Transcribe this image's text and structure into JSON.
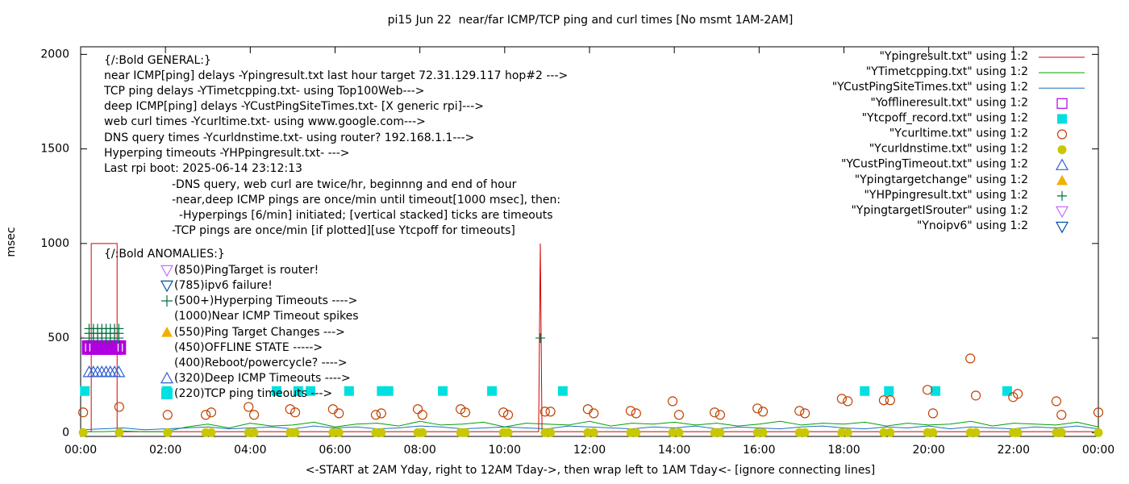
{
  "chart_data": {
    "type": "line",
    "title": "pi15 Jun 22  near/far ICMP/TCP ping and curl times [No msmt 1AM-2AM]",
    "xlabel": "<-START at 2AM Yday, right to 12AM Tday->, then wrap left to 1AM Tday<- [ignore connecting lines]",
    "ylabel": "msec",
    "xlim": [
      0,
      24
    ],
    "ylim": [
      -20,
      2040
    ],
    "xticks": [
      {
        "value": 0,
        "label": "00:00"
      },
      {
        "value": 2,
        "label": "02:00"
      },
      {
        "value": 4,
        "label": "04:00"
      },
      {
        "value": 6,
        "label": "06:00"
      },
      {
        "value": 8,
        "label": "08:00"
      },
      {
        "value": 10,
        "label": "10:00"
      },
      {
        "value": 12,
        "label": "12:00"
      },
      {
        "value": 14,
        "label": "14:00"
      },
      {
        "value": 16,
        "label": "16:00"
      },
      {
        "value": 18,
        "label": "18:00"
      },
      {
        "value": 20,
        "label": "20:00"
      },
      {
        "value": 22,
        "label": "22:00"
      },
      {
        "value": 24,
        "label": "00:00"
      }
    ],
    "yticks": [
      0,
      500,
      1000,
      1500,
      2000
    ],
    "legend": "top-right",
    "annotations": [
      "{/:Bold GENERAL:}",
      "near ICMP[ping] delays -Ypingresult.txt last hour target 72.31.129.117 hop#2 --->",
      "TCP ping delays -YTimetcpping.txt- using Top100Web--->",
      "deep ICMP[ping] delays -YCustPingSiteTimes.txt- [X generic rpi]--->",
      "web curl times -Ycurltime.txt- using www.google.com--->",
      "DNS query times -Ycurldnstime.txt- using router? 192.168.1.1--->",
      "Hyperping timeouts -YHPpingresult.txt- --->",
      "Last rpi boot: 2025-06-14 23:12:13",
      "-DNS query, web curl are twice/hr, beginnng and end of hour",
      "-near,deep ICMP pings are once/min until timeout[1000 msec], then:",
      "  -Hyperpings [6/min] initiated; [vertical stacked] ticks are timeouts",
      "-TCP pings are once/min [if plotted][use Ytcpoff for timeouts]",
      "{/:Bold ANOMALIES:}",
      "(850)PingTarget is router!",
      "(785)ipv6 failure!",
      "(500+)Hyperping Timeouts ---->",
      "(1000)Near ICMP Timeout spikes",
      "(550)Ping Target Changes --->",
      "(450)OFFLINE STATE ----->",
      "(400)Reboot/powercycle? ---->",
      "(320)Deep ICMP Timeouts ---->",
      "(220)TCP ping timeouts --->"
    ],
    "series": [
      {
        "name": "\"Ypingresult.txt\" using 1:2",
        "color": "#d40000",
        "marker": "line",
        "x": [
          0,
          0.25,
          0.25,
          0.86,
          0.86,
          10.8,
          10.84,
          10.88,
          24
        ],
        "values": [
          5,
          5,
          1000,
          1000,
          5,
          5,
          1000,
          5,
          5
        ]
      },
      {
        "name": "\"YTimetcpping.txt\" using 1:2",
        "color": "#00a000",
        "marker": "line",
        "x": [
          0,
          0.5,
          1,
          1.5,
          2,
          2.5,
          3,
          3.5,
          4,
          4.5,
          5,
          5.5,
          6,
          6.5,
          7,
          7.5,
          8,
          8.5,
          9,
          9.5,
          10,
          10.5,
          11,
          11.5,
          12,
          12.5,
          13,
          13.5,
          14,
          14.5,
          15,
          15.5,
          16,
          16.5,
          17,
          17.5,
          18,
          18.5,
          19,
          19.5,
          20,
          20.5,
          21,
          21.5,
          22,
          22.5,
          23,
          23.5,
          24
        ],
        "values": [
          5,
          5,
          8,
          5,
          5,
          30,
          45,
          25,
          50,
          35,
          40,
          55,
          30,
          45,
          50,
          35,
          60,
          40,
          45,
          55,
          30,
          50,
          45,
          40,
          60,
          35,
          50,
          45,
          55,
          40,
          50,
          35,
          45,
          60,
          40,
          50,
          45,
          55,
          35,
          50,
          40,
          45,
          60,
          35,
          50,
          45,
          40,
          55,
          30
        ]
      },
      {
        "name": "\"YCustPingSiteTimes.txt\" using 1:2",
        "color": "#1f6fc0",
        "marker": "line",
        "x": [
          0,
          0.5,
          1,
          1.5,
          2,
          2.5,
          3,
          3.5,
          4,
          4.5,
          5,
          5.5,
          6,
          6.5,
          7,
          7.5,
          8,
          8.5,
          9,
          9.5,
          10,
          10.5,
          11,
          11.5,
          12,
          12.5,
          13,
          13.5,
          14,
          14.5,
          15,
          15.5,
          16,
          16.5,
          17,
          17.5,
          18,
          18.5,
          19,
          19.5,
          20,
          20.5,
          21,
          21.5,
          22,
          22.5,
          23,
          23.5,
          24
        ],
        "values": [
          15,
          20,
          25,
          15,
          20,
          25,
          30,
          20,
          25,
          30,
          20,
          35,
          25,
          30,
          20,
          25,
          35,
          30,
          20,
          25,
          30,
          25,
          20,
          35,
          30,
          25,
          20,
          30,
          25,
          35,
          20,
          30,
          25,
          20,
          30,
          35,
          25,
          20,
          30,
          25,
          35,
          20,
          30,
          25,
          20,
          30,
          25,
          35,
          20
        ]
      },
      {
        "name": "\"Yofflineresult.txt\" using 1:2",
        "color": "#b000e0",
        "marker": "square-open",
        "x": [
          0.2,
          0.3,
          0.4,
          0.5,
          0.6,
          0.7,
          0.8,
          0.9
        ],
        "values": [
          450,
          450,
          450,
          450,
          450,
          450,
          450,
          450
        ]
      },
      {
        "name": "\"Ytcpoff_record.txt\" using 1:2",
        "color": "#00e0e0",
        "marker": "square",
        "x": [
          0.1,
          2.03,
          4.62,
          5.13,
          5.42,
          6.33,
          7.1,
          7.26,
          8.54,
          9.7,
          11.37,
          18.49,
          19.06,
          20.16,
          21.85
        ],
        "values": [
          220,
          220,
          220,
          220,
          220,
          220,
          220,
          220,
          220,
          220,
          220,
          220,
          220,
          220,
          220
        ]
      },
      {
        "name": "\"Ycurltime.txt\" using 1:2",
        "color": "#c04000",
        "marker": "circle-open",
        "x": [
          0.06,
          0.91,
          2.05,
          2.95,
          3.08,
          3.96,
          4.09,
          4.94,
          5.06,
          5.95,
          6.09,
          6.96,
          7.09,
          7.95,
          8.06,
          8.96,
          9.07,
          9.97,
          10.08,
          10.95,
          11.08,
          11.96,
          12.1,
          12.97,
          13.1,
          13.96,
          14.11,
          14.95,
          15.08,
          15.96,
          16.09,
          16.95,
          17.08,
          17.95,
          18.09,
          18.94,
          19.09,
          19.97,
          20.1,
          20.98,
          21.11,
          21.99,
          22.1,
          23.01,
          23.13,
          24
        ],
        "values": [
          107,
          136,
          94,
          94,
          107,
          136,
          94,
          124,
          107,
          124,
          102,
          94,
          102,
          124,
          94,
          124,
          107,
          107,
          94,
          111,
          111,
          124,
          102,
          115,
          102,
          166,
          94,
          107,
          94,
          128,
          111,
          115,
          102,
          179,
          166,
          171,
          171,
          226,
          102,
          392,
          196,
          188,
          205,
          166,
          94,
          107
        ]
      },
      {
        "name": "\"Ycurldnstime.txt\" using 1:2",
        "color": "#c8c800",
        "marker": "circle",
        "x": [
          0.06,
          0.91,
          2.05,
          2.95,
          3.08,
          3.96,
          4.09,
          4.94,
          5.06,
          5.95,
          6.09,
          6.96,
          7.09,
          7.95,
          8.06,
          8.96,
          9.07,
          9.97,
          10.08,
          10.95,
          11.08,
          11.96,
          12.1,
          12.97,
          13.1,
          13.96,
          14.11,
          14.95,
          15.08,
          15.96,
          16.09,
          16.95,
          17.08,
          17.95,
          18.09,
          18.94,
          19.09,
          19.97,
          20.1,
          20.98,
          21.11,
          21.99,
          22.1,
          23.01,
          23.13,
          24
        ],
        "values": [
          0,
          0,
          0,
          0,
          0,
          0,
          0,
          0,
          0,
          0,
          0,
          0,
          0,
          0,
          0,
          0,
          0,
          0,
          0,
          0,
          0,
          0,
          0,
          0,
          0,
          0,
          0,
          0,
          0,
          0,
          0,
          0,
          0,
          0,
          0,
          0,
          0,
          0,
          0,
          0,
          0,
          0,
          0,
          0,
          0,
          0
        ]
      },
      {
        "name": "\"YCustPingTimeout.txt\" using 1:2",
        "color": "#3060d0",
        "marker": "triangle-open",
        "x": [
          0.2,
          0.3,
          0.4,
          0.5,
          0.6,
          0.7,
          0.8,
          0.9
        ],
        "values": [
          320,
          320,
          320,
          320,
          320,
          320,
          320,
          320
        ]
      },
      {
        "name": "\"Ypingtargetchange\" using 1:2",
        "color": "#f0b000",
        "marker": "triangle",
        "x": [],
        "values": []
      },
      {
        "name": "\"YHPpingresult.txt\" using 1:2",
        "color": "#007040",
        "marker": "plus",
        "x": [
          0.2,
          0.3,
          0.4,
          0.5,
          0.6,
          0.7,
          0.8,
          0.9,
          0.2,
          0.3,
          0.4,
          0.5,
          0.6,
          0.7,
          0.8,
          0.9,
          0.2,
          0.3,
          0.4,
          0.5,
          0.6,
          0.7,
          0.8,
          0.9,
          10.84
        ],
        "values": [
          500,
          500,
          500,
          500,
          500,
          500,
          500,
          500,
          525,
          525,
          525,
          525,
          525,
          525,
          525,
          525,
          550,
          550,
          550,
          550,
          550,
          550,
          550,
          550,
          500
        ]
      },
      {
        "name": "\"YpingtargetISrouter\" using 1:2",
        "color": "#c070ff",
        "marker": "triangle-down-open",
        "x": [],
        "values": []
      },
      {
        "name": "\"Ynoipv6\" using 1:2",
        "color": "#0050a0",
        "marker": "triangle-down-open",
        "x": [],
        "values": []
      }
    ]
  }
}
